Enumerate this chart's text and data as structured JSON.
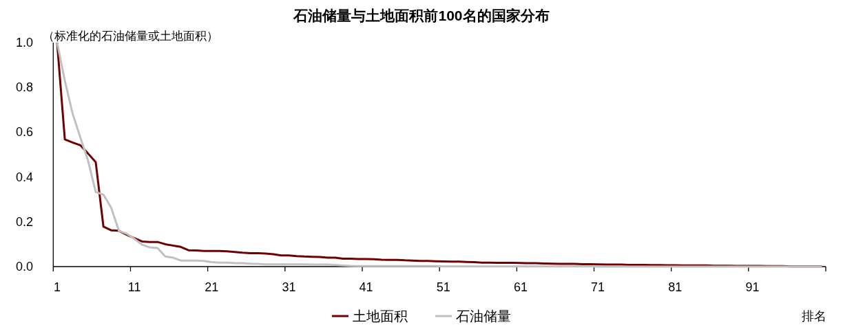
{
  "chart_data": {
    "type": "line",
    "title": "石油储量与土地面积前100名的国家分布",
    "ylabel": "（标准化的石油储量或土地面积）",
    "xlabel": "排名",
    "categories": [
      "1",
      null,
      null,
      null,
      null,
      null,
      null,
      null,
      null,
      null,
      "11",
      null,
      null,
      null,
      null,
      null,
      null,
      null,
      null,
      null,
      "21",
      null,
      null,
      null,
      null,
      null,
      null,
      null,
      null,
      null,
      "31",
      null,
      null,
      null,
      null,
      null,
      null,
      null,
      null,
      null,
      "41",
      null,
      null,
      null,
      null,
      null,
      null,
      null,
      null,
      null,
      "51",
      null,
      null,
      null,
      null,
      null,
      null,
      null,
      null,
      null,
      "61",
      null,
      null,
      null,
      null,
      null,
      null,
      null,
      null,
      null,
      "71",
      null,
      null,
      null,
      null,
      null,
      null,
      null,
      null,
      null,
      "81",
      null,
      null,
      null,
      null,
      null,
      null,
      null,
      null,
      null,
      "91",
      null,
      null,
      null,
      null,
      null,
      null,
      null,
      null,
      null
    ],
    "series": [
      {
        "name": "土地面积",
        "color": "#6e0000",
        "values": [
          1.0,
          0.568,
          0.554,
          0.542,
          0.505,
          0.466,
          0.178,
          0.162,
          0.16,
          0.142,
          0.127,
          0.112,
          0.11,
          0.11,
          0.1,
          0.094,
          0.088,
          0.073,
          0.072,
          0.07,
          0.07,
          0.07,
          0.068,
          0.065,
          0.062,
          0.06,
          0.06,
          0.058,
          0.055,
          0.05,
          0.05,
          0.047,
          0.045,
          0.044,
          0.043,
          0.04,
          0.04,
          0.035,
          0.035,
          0.034,
          0.034,
          0.033,
          0.031,
          0.03,
          0.03,
          0.028,
          0.027,
          0.025,
          0.025,
          0.024,
          0.023,
          0.022,
          0.022,
          0.021,
          0.02,
          0.018,
          0.018,
          0.017,
          0.017,
          0.017,
          0.016,
          0.015,
          0.015,
          0.014,
          0.013,
          0.012,
          0.012,
          0.012,
          0.011,
          0.011,
          0.01,
          0.009,
          0.009,
          0.009,
          0.008,
          0.008,
          0.008,
          0.007,
          0.007,
          0.006,
          0.006,
          0.005,
          0.005,
          0.005,
          0.005,
          0.004,
          0.004,
          0.004,
          0.003,
          0.003,
          0.003,
          0.003,
          0.002,
          0.002,
          0.002,
          0.001,
          0.001,
          0.001,
          0.001,
          0.001
        ]
      },
      {
        "name": "石油储量",
        "color": "#c0c0c0",
        "values": [
          1.0,
          0.83,
          0.684,
          0.577,
          0.474,
          0.333,
          0.321,
          0.263,
          0.16,
          0.147,
          0.124,
          0.098,
          0.086,
          0.083,
          0.045,
          0.04,
          0.027,
          0.027,
          0.027,
          0.025,
          0.02,
          0.018,
          0.018,
          0.015,
          0.015,
          0.013,
          0.012,
          0.01,
          0.01,
          0.01,
          0.01,
          0.01,
          0.01,
          0.009,
          0.009,
          0.009,
          0.008,
          0.005,
          0.003,
          0.002,
          0.002,
          0.002,
          0.002,
          0.002,
          0.002,
          0.002,
          0.002,
          0.002,
          0.002,
          0.002,
          0.001,
          0.001,
          0.001,
          0.001,
          0.001,
          0.001,
          0.001,
          0.001,
          0.001,
          0.001,
          0.001,
          0.001,
          0.001,
          0.001,
          0.001,
          0.001,
          0.001,
          0.001,
          0.001,
          0.001,
          0,
          0,
          0,
          0,
          0,
          0,
          0,
          0,
          0,
          0,
          0,
          0,
          0,
          0,
          0,
          0,
          0,
          0,
          0,
          0,
          0,
          0,
          0,
          0,
          0,
          0,
          0,
          0,
          0,
          0
        ]
      }
    ],
    "ylim": [
      0,
      1.0
    ],
    "yticks": [
      {
        "value": 0,
        "label": "0.0"
      },
      0.2,
      0.4,
      0.6,
      0.8,
      {
        "value": 1.0,
        "label": "1.0"
      }
    ],
    "grid": false,
    "legend": "bottom",
    "marker": "none",
    "line_style": "solid"
  }
}
